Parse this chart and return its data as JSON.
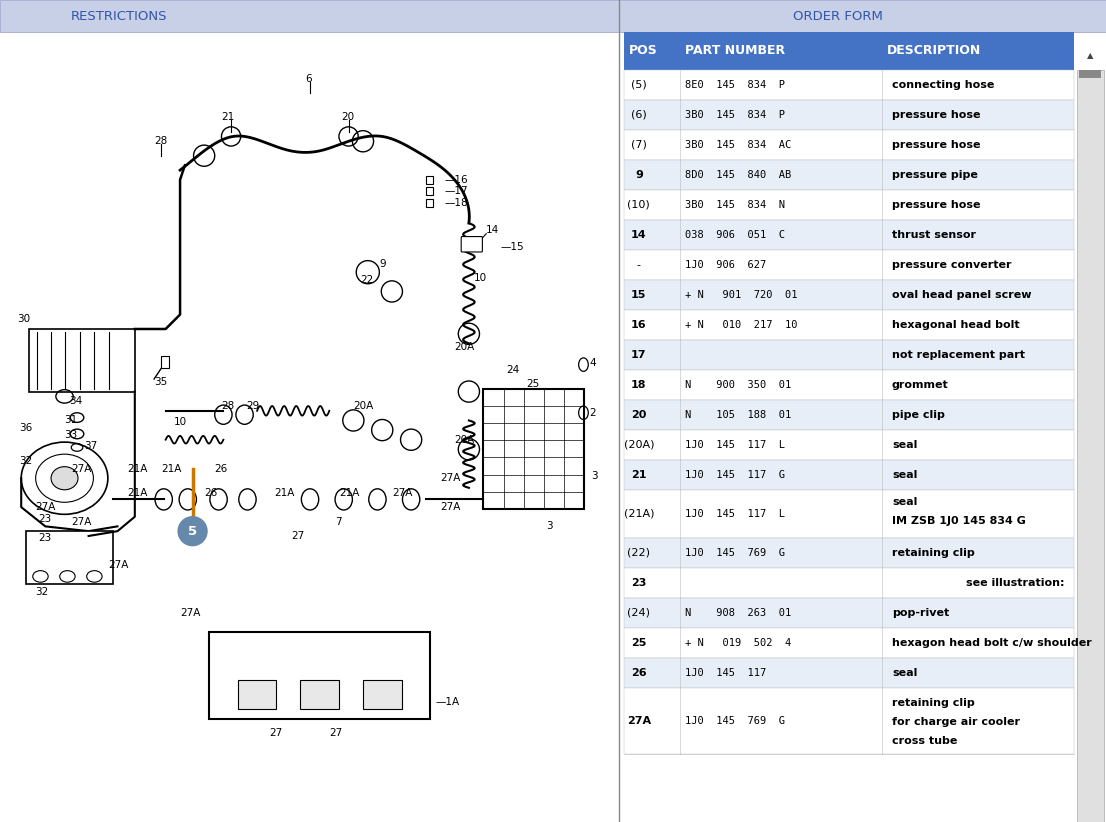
{
  "title_left": "RESTRICTIONS",
  "title_right": "ORDER FORM",
  "header_bg_left": "#C8D0E8",
  "header_bg_right": "#C8D0E8",
  "header_text_color_left": "#3355AA",
  "header_text_color_right": "#3355AA",
  "table_header_bg": "#4472C4",
  "table_header_text": "#FFFFFF",
  "row_bg_white": "#FFFFFF",
  "row_bg_light": "#E8EEF8",
  "left_bg": "#FFFFFF",
  "right_bg": "#FFFFFF",
  "table_data": [
    [
      "(5)",
      "8E0  145  834  P",
      "connecting hose"
    ],
    [
      "(6)",
      "3B0  145  834  P",
      "pressure hose"
    ],
    [
      "(7)",
      "3B0  145  834  AC",
      "pressure hose"
    ],
    [
      "9",
      "8D0  145  840  AB",
      "pressure pipe"
    ],
    [
      "(10)",
      "3B0  145  834  N",
      "pressure hose"
    ],
    [
      "14",
      "038  906  051  C",
      "thrust sensor"
    ],
    [
      "-",
      "1J0  906  627",
      "pressure converter"
    ],
    [
      "15",
      "+ N   901  720  01",
      "oval head panel screw"
    ],
    [
      "16",
      "+ N   010  217  10",
      "hexagonal head bolt"
    ],
    [
      "17",
      "",
      "not replacement part"
    ],
    [
      "18",
      "N    900  350  01",
      "grommet"
    ],
    [
      "20",
      "N    105  188  01",
      "pipe clip"
    ],
    [
      "(20A)",
      "1J0  145  117  L",
      "seal"
    ],
    [
      "21",
      "1J0  145  117  G",
      "seal"
    ],
    [
      "(21A)",
      "1J0  145  117  L",
      "seal\nIM ZSB 1J0 145 834 G"
    ],
    [
      "(22)",
      "1J0  145  769  G",
      "retaining clip"
    ],
    [
      "23",
      "",
      "see illustration:"
    ],
    [
      "(24)",
      "N    908  263  01",
      "pop-rivet"
    ],
    [
      "25",
      "+ N   019  502  4",
      "hexagon head bolt c/w shoulder"
    ],
    [
      "26",
      "1J0  145  117",
      "seal"
    ],
    [
      "27A",
      "1J0  145  769  G",
      "retaining clip\nfor charge air cooler\ncross tube"
    ]
  ],
  "font_size_table": 8.0,
  "font_size_header_col": 9.0,
  "font_size_title": 9.5,
  "orange_line_color": "#CC7700",
  "circle_color": "#6688AA",
  "diagram_bg": "#FFFFFF"
}
